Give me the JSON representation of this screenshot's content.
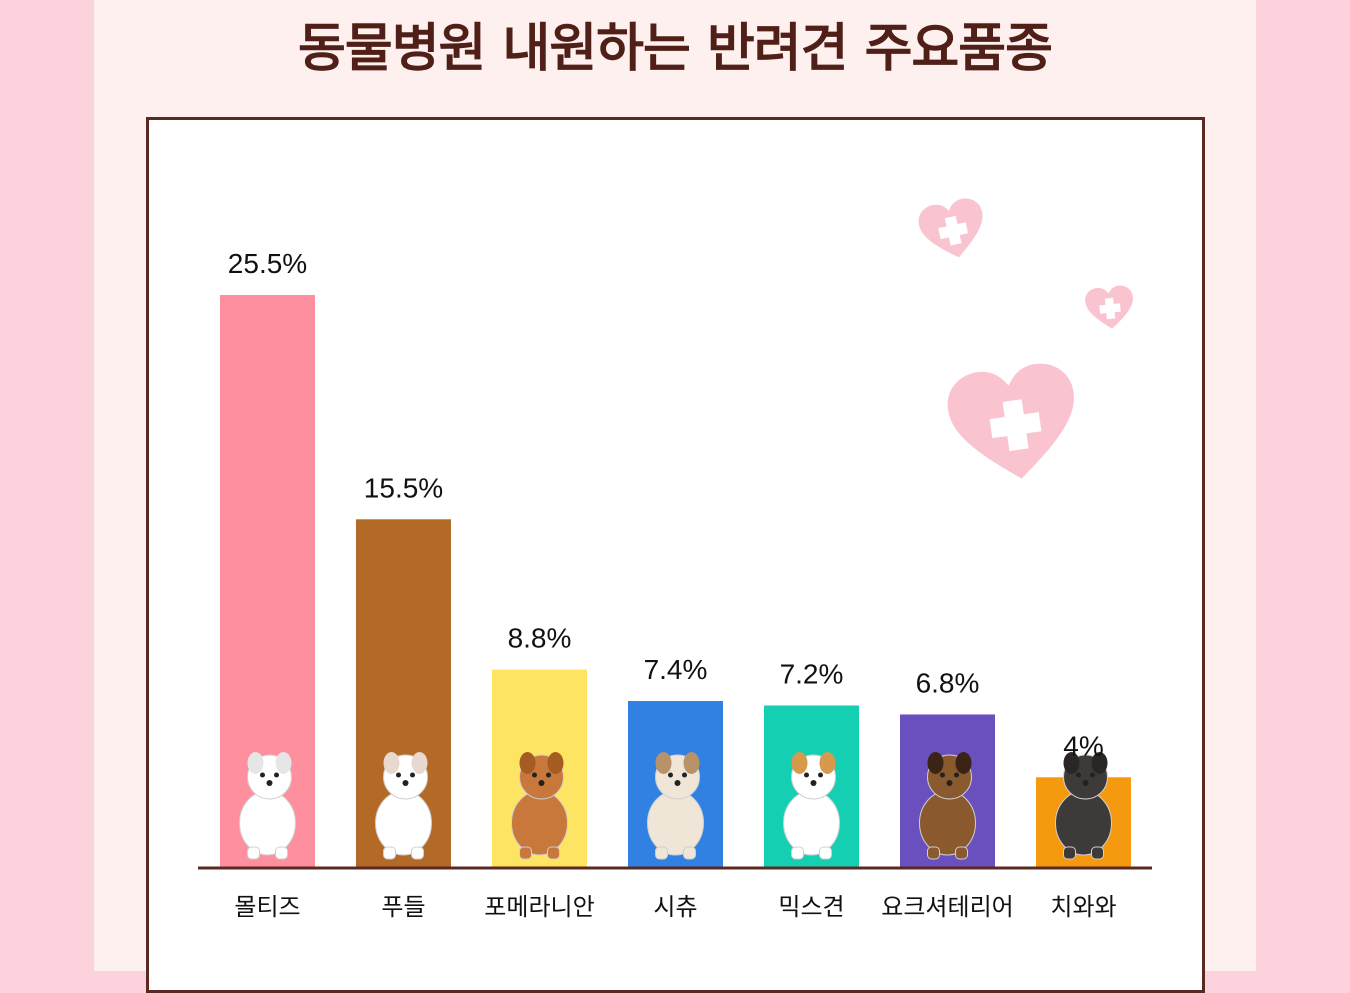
{
  "title": "동물병원 내원하는 반려견 주요품종",
  "chart_data": {
    "type": "bar",
    "title": "동물병원 내원하는 반려견 주요품종",
    "xlabel": "",
    "ylabel": "",
    "ylim": [
      0,
      30
    ],
    "grid": false,
    "categories": [
      "몰티즈",
      "푸들",
      "포메라니안",
      "시츄",
      "믹스견",
      "요크셔테리어",
      "치와와"
    ],
    "values": [
      25.5,
      15.5,
      8.8,
      7.4,
      7.2,
      6.8,
      4
    ],
    "labels": [
      "25.5%",
      "15.5%",
      "8.8%",
      "7.4%",
      "7.2%",
      "6.8%",
      "4%"
    ],
    "colors": [
      "#fd8f9f",
      "#b26a26",
      "#fde462",
      "#3181e3",
      "#15cfb2",
      "#6a4fbe",
      "#f59a0e"
    ],
    "icons": [
      "samoyed-dog-icon",
      "poodle-dog-icon",
      "pomeranian-dog-icon",
      "shih-tzu-dog-icon",
      "mixed-breed-dog-icon",
      "yorkshire-terrier-dog-icon",
      "chihuahua-dog-icon"
    ]
  }
}
